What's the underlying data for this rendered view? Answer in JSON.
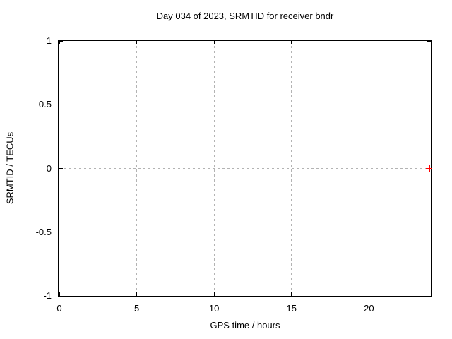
{
  "chart_data": {
    "type": "scatter",
    "title": "Day 034 of 2023, SRMTID for receiver bndr",
    "xlabel": "GPS time / hours",
    "ylabel": "SRMTID / TECUs",
    "xlim": [
      0,
      24
    ],
    "ylim": [
      -1,
      1
    ],
    "xticks": [
      0,
      5,
      10,
      15,
      20
    ],
    "yticks": [
      -1,
      -0.5,
      0,
      0.5,
      1
    ],
    "grid": true,
    "legend_position": "none",
    "border_color": "#000000",
    "grid_color": "#b3b3b3",
    "series": [
      {
        "marker": "plus",
        "color": "#ff0000",
        "points": [
          {
            "x": 23.9,
            "y": 0.0
          }
        ]
      }
    ]
  }
}
